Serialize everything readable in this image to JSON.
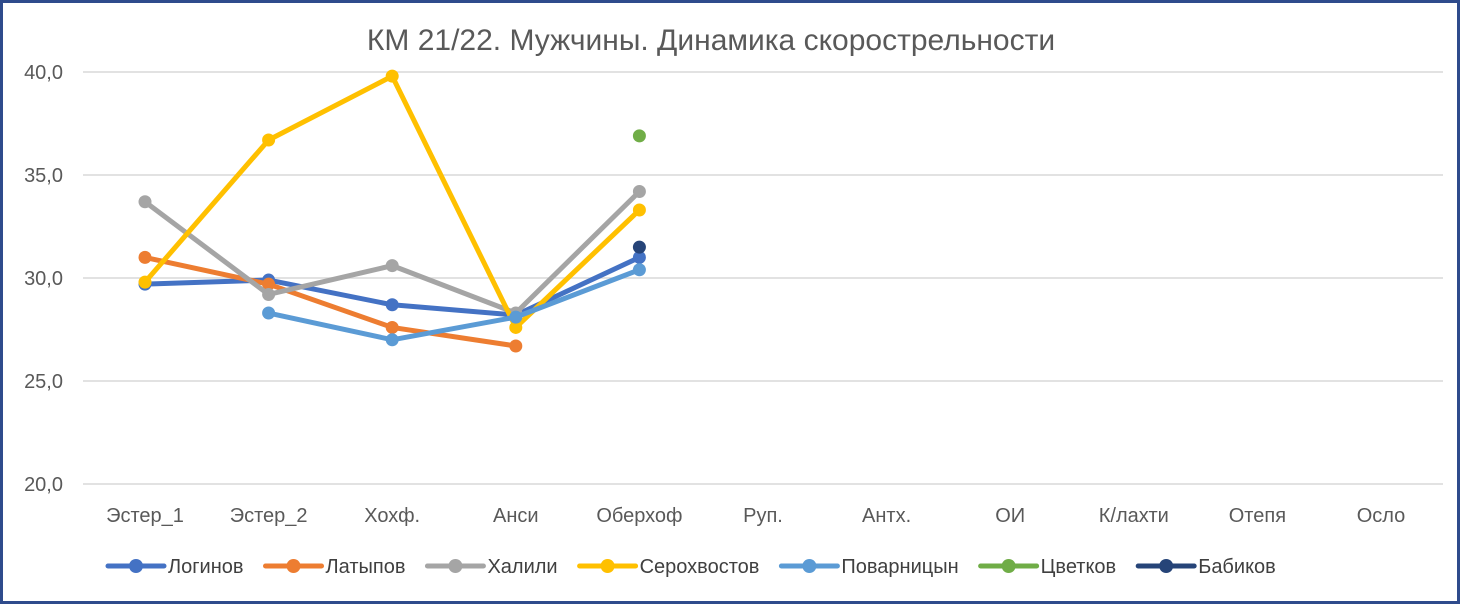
{
  "chart_data": {
    "type": "line",
    "title": "КМ 21/22. Мужчины. Динамика скорострельности",
    "categories": [
      "Эстер_1",
      "Эстер_2",
      "Хохф.",
      "Анси",
      "Оберхоф",
      "Руп.",
      "Антх.",
      "ОИ",
      "К/лахти",
      "Отепя",
      "Осло"
    ],
    "ylim": [
      20,
      40
    ],
    "yticks": [
      20,
      25,
      30,
      35,
      40
    ],
    "ytick_labels": [
      "20,0",
      "25,0",
      "30,0",
      "35,0",
      "40,0"
    ],
    "grid": true,
    "legend_position": "bottom",
    "series": [
      {
        "name": "Логинов",
        "color": "#4472c4",
        "values": [
          29.7,
          29.9,
          28.7,
          28.2,
          31.0,
          null,
          null,
          null,
          null,
          null,
          null
        ]
      },
      {
        "name": "Латыпов",
        "color": "#ed7d31",
        "values": [
          31.0,
          29.7,
          27.6,
          26.7,
          null,
          null,
          null,
          null,
          null,
          null,
          null
        ]
      },
      {
        "name": "Халили",
        "color": "#a5a5a5",
        "values": [
          33.7,
          29.2,
          30.6,
          28.3,
          34.2,
          null,
          null,
          null,
          null,
          null,
          null
        ]
      },
      {
        "name": "Серохвостов",
        "color": "#ffc000",
        "values": [
          29.8,
          36.7,
          39.8,
          27.6,
          33.3,
          null,
          null,
          null,
          null,
          null,
          null
        ]
      },
      {
        "name": "Поварницын",
        "color": "#5b9bd5",
        "values": [
          null,
          28.3,
          27.0,
          28.1,
          30.4,
          null,
          null,
          null,
          null,
          null,
          null
        ]
      },
      {
        "name": "Цветков",
        "color": "#70ad47",
        "values": [
          null,
          null,
          null,
          null,
          36.9,
          null,
          null,
          null,
          null,
          null,
          null
        ]
      },
      {
        "name": "Бабиков",
        "color": "#264478",
        "values": [
          null,
          null,
          null,
          null,
          31.5,
          null,
          null,
          null,
          null,
          null,
          null
        ]
      }
    ]
  }
}
